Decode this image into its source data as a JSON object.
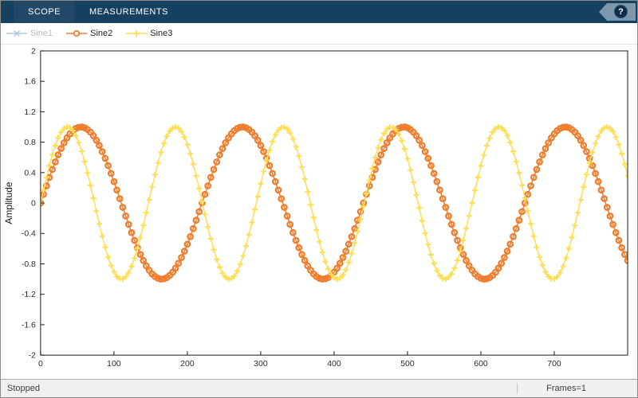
{
  "toolbar": {
    "tabs": [
      {
        "label": "SCOPE"
      },
      {
        "label": "MEASUREMENTS"
      }
    ],
    "help_label": "?"
  },
  "colors": {
    "toolbar_bg": "#16405f",
    "axis_line": "#1a1a1a",
    "tick_text": "#2b2b2b"
  },
  "status": {
    "left": "Stopped",
    "frames": "Frames=1"
  },
  "chart_data": {
    "type": "line",
    "title": "",
    "xlabel": "",
    "ylabel": "Amplitude",
    "xlim": [
      0,
      800
    ],
    "ylim": [
      -2,
      2
    ],
    "xticks": [
      0,
      100,
      200,
      300,
      400,
      500,
      600,
      700
    ],
    "yticks": [
      -2,
      -1.6,
      -1.2,
      -0.8,
      -0.4,
      0,
      0.4,
      0.8,
      1.2,
      1.6,
      2
    ],
    "grid": false,
    "legend_position": "top-left",
    "series": [
      {
        "name": "Sine1",
        "color": "#a8cce0",
        "marker": "x",
        "visible": false,
        "amplitude": 1,
        "period": 220,
        "phase": 0
      },
      {
        "name": "Sine2",
        "color": "#ee7e2e",
        "marker": "o",
        "visible": true,
        "amplitude": 1,
        "period": 220,
        "phase": 0
      },
      {
        "name": "Sine3",
        "color": "#ffdd55",
        "marker": "+",
        "visible": true,
        "amplitude": 1,
        "period": 147,
        "phase": 0
      }
    ]
  }
}
